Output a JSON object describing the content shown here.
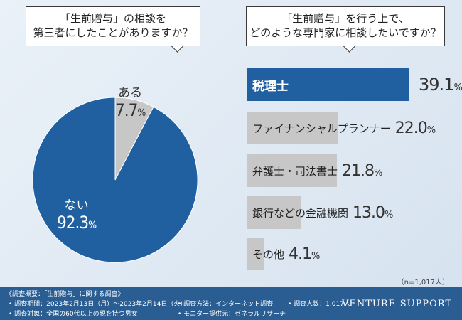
{
  "left_question": {
    "line1": "「生前贈与」の相談を",
    "line2": "第三者にしたことがありますか？"
  },
  "right_question": {
    "line1": "「生前贈与」を行う上で、",
    "line2": "どのような専門家に相談したいですか？"
  },
  "colors": {
    "primary": "#2160a0",
    "secondary": "#c7c7c7",
    "footer": "#2a5d92"
  },
  "chart_data": [
    {
      "type": "pie",
      "slices": [
        {
          "name": "ある",
          "value": 7.7,
          "label": "7.7%"
        },
        {
          "name": "ない",
          "value": 92.3,
          "label": "92.3%"
        }
      ],
      "start_angle_deg": 0
    },
    {
      "type": "bar",
      "orientation": "horizontal",
      "categories": [
        "税理士",
        "ファイナンシャルプランナー",
        "弁護士・司法書士",
        "銀行などの金融機関",
        "その他"
      ],
      "values": [
        39.1,
        22.0,
        21.8,
        13.0,
        4.1
      ],
      "value_labels": [
        "39.1%",
        "22.0%",
        "21.8%",
        "13.0%",
        "4.1%"
      ],
      "note": "（n=1,017人）"
    }
  ],
  "footer": {
    "title": "《調査概要：「生前贈与」に関する調査》",
    "period": "• 調査期間：2023年2月13日（月）〜2023年2月14日（火）",
    "method": "• 調査方法：インターネット調査",
    "count": "• 調査人数：1,017人",
    "target": "• 調査対象：全国の60代以上の親を持つ男女",
    "provider": "• モニター提供元：ゼネラルリサーチ",
    "brand": "VENTURE-SUPPORT"
  }
}
